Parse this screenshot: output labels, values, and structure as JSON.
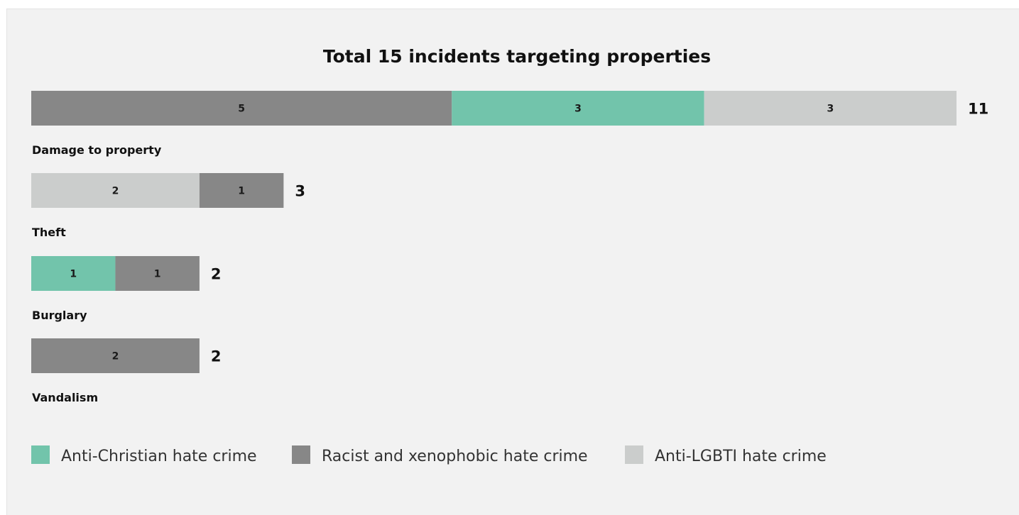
{
  "chart_data": {
    "type": "bar",
    "orientation": "horizontal",
    "stacked": true,
    "title": "Total 15 incidents targeting properties",
    "xlabel": "",
    "ylabel": "",
    "xlim": [
      0,
      11
    ],
    "grid": false,
    "legend_position": "bottom-left",
    "series_meta": [
      {
        "key": "christian",
        "name": "Anti-Christian hate crime",
        "color": "#72c4ab"
      },
      {
        "key": "racist",
        "name": "Racist and xenophobic hate crime",
        "color": "#878787"
      },
      {
        "key": "lgbti",
        "name": "Anti-LGBTI hate crime",
        "color": "#cbcdcc"
      }
    ],
    "categories": [
      {
        "label": "Damage to property",
        "total": 11,
        "segments": [
          {
            "series": "christian",
            "value": 0
          },
          {
            "series": "racist",
            "value": 5
          },
          {
            "series": "christian",
            "value": 3
          },
          {
            "series": "lgbti",
            "value": 3
          }
        ]
      },
      {
        "label": "Theft",
        "total": 3,
        "segments": [
          {
            "series": "christian",
            "value": 0
          },
          {
            "series": "lgbti",
            "value": 2
          },
          {
            "series": "racist",
            "value": 1
          }
        ]
      },
      {
        "label": "Burglary",
        "total": 2,
        "segments": [
          {
            "series": "christian",
            "value": 1
          },
          {
            "series": "racist",
            "value": 1
          }
        ]
      },
      {
        "label": "Vandalism",
        "total": 2,
        "segments": [
          {
            "series": "racist",
            "value": 2
          }
        ]
      }
    ]
  }
}
